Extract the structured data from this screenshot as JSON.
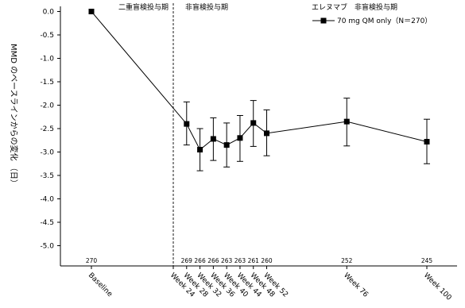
{
  "chart_data": {
    "type": "line",
    "ylabel": "MMD のベースラインからの変化 （日）",
    "ylim": [
      -5.0,
      0.0
    ],
    "yticks": [
      "0.0",
      "-0.5",
      "-1.0",
      "-1.5",
      "-2.0",
      "-2.5",
      "-3.0",
      "-3.5",
      "-4.0",
      "-4.5",
      "-5.0"
    ],
    "x_weeks": [
      0,
      24,
      28,
      32,
      36,
      40,
      44,
      48,
      52,
      76,
      100
    ],
    "x_labels": [
      "Baseline",
      "Week 24",
      "Week 28",
      "Week 32",
      "Week 36",
      "Week 40",
      "Week 44",
      "Week 48",
      "Week 52",
      "Week 76",
      "Week 100"
    ],
    "series": [
      {
        "name": "70 mg QM only（N＝270）",
        "color": "#000000",
        "marker": "square",
        "points": [
          {
            "week": 0,
            "mean": 0.0,
            "lower": 0.0,
            "upper": 0.0,
            "n": "270"
          },
          {
            "week": 28,
            "mean": -2.4,
            "lower": -2.85,
            "upper": -1.93,
            "n": "269"
          },
          {
            "week": 32,
            "mean": -2.95,
            "lower": -3.4,
            "upper": -2.5,
            "n": "266"
          },
          {
            "week": 36,
            "mean": -2.72,
            "lower": -3.18,
            "upper": -2.27,
            "n": "266"
          },
          {
            "week": 40,
            "mean": -2.85,
            "lower": -3.32,
            "upper": -2.38,
            "n": "263"
          },
          {
            "week": 44,
            "mean": -2.7,
            "lower": -3.2,
            "upper": -2.22,
            "n": "263"
          },
          {
            "week": 48,
            "mean": -2.38,
            "lower": -2.88,
            "upper": -1.9,
            "n": "261"
          },
          {
            "week": 52,
            "mean": -2.6,
            "lower": -3.08,
            "upper": -2.1,
            "n": "260"
          },
          {
            "week": 76,
            "mean": -2.35,
            "lower": -2.87,
            "upper": -1.85,
            "n": "252"
          },
          {
            "week": 100,
            "mean": -2.78,
            "lower": -3.25,
            "upper": -2.3,
            "n": "245"
          }
        ]
      }
    ],
    "divider_week": 24,
    "period_labels": {
      "double_blind": "二重盲検投与期",
      "open_label": "非盲検投与期"
    },
    "legend": {
      "title": "エレヌマブ　非盲検投与期",
      "placement": "top-right"
    },
    "grid": false
  }
}
